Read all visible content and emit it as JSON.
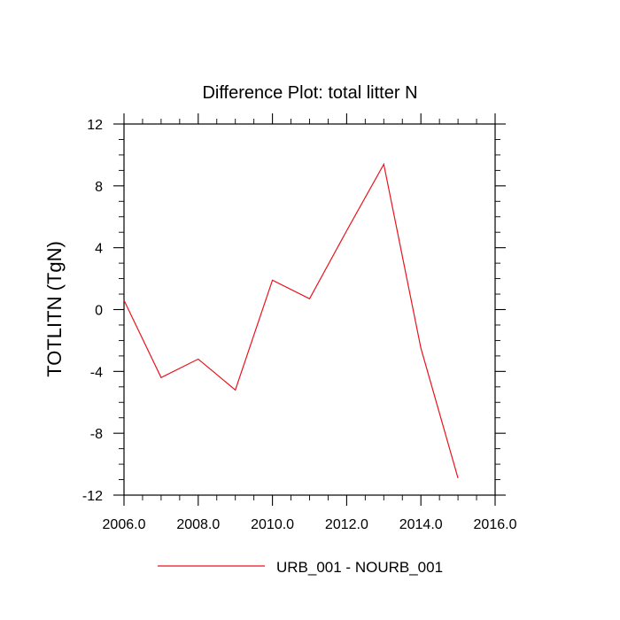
{
  "chart_data": {
    "type": "line",
    "title": "Difference Plot: total litter N",
    "xlabel": "",
    "ylabel": "TOTLITN  (TgN)",
    "xlim": [
      2006,
      2016
    ],
    "ylim": [
      -12,
      12
    ],
    "x_ticks": [
      2006,
      2008,
      2010,
      2012,
      2014,
      2016
    ],
    "x_tick_labels": [
      "2006.0",
      "2008.0",
      "2010.0",
      "2012.0",
      "2014.0",
      "2016.0"
    ],
    "y_ticks": [
      12,
      8,
      4,
      0,
      -4,
      -8,
      -12
    ],
    "y_tick_labels": [
      "12",
      "8",
      "4",
      "0",
      "-4",
      "-8",
      "-12"
    ],
    "grid": false,
    "legend_position": "bottom",
    "series": [
      {
        "name": "URB_001 - NOURB_001",
        "color": "#e8141e",
        "x": [
          2006,
          2007,
          2008,
          2009,
          2010,
          2011,
          2012,
          2013,
          2014,
          2015
        ],
        "y": [
          0.6,
          -4.4,
          -3.2,
          -5.2,
          1.9,
          0.7,
          5.1,
          9.4,
          -2.5,
          -10.9
        ]
      }
    ]
  }
}
